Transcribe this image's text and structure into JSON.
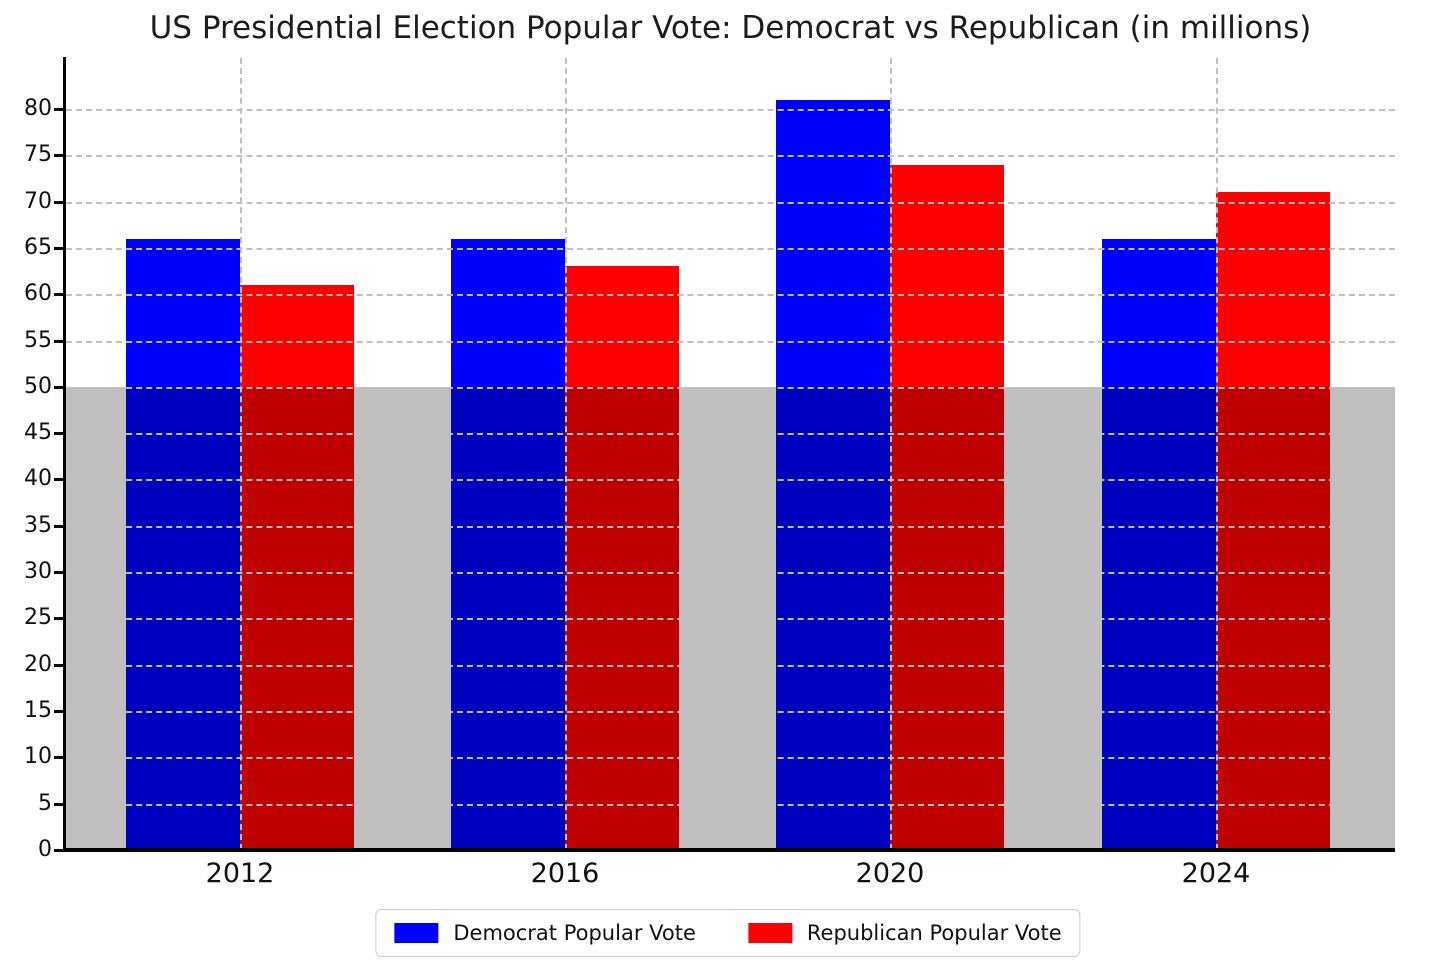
{
  "title": "US Presidential Election Popular Vote: Democrat vs Republican (in millions)",
  "chart_data": {
    "type": "bar",
    "title": "US Presidential Election Popular Vote: Democrat vs Republican (in millions)",
    "categories": [
      "2012",
      "2016",
      "2020",
      "2024"
    ],
    "series": [
      {
        "name": "Democrat Popular Vote",
        "color": "#0000ff",
        "values": [
          66,
          66,
          81,
          66
        ]
      },
      {
        "name": "Republican Popular Vote",
        "color": "#ff0000",
        "values": [
          61,
          63,
          74,
          71
        ]
      }
    ],
    "xlabel": "",
    "ylabel": "",
    "ylim": [
      0,
      85.5
    ],
    "yticks": [
      0,
      5,
      10,
      15,
      20,
      25,
      30,
      35,
      40,
      45,
      50,
      55,
      60,
      65,
      70,
      75,
      80
    ],
    "grid": "dashed",
    "grid_color": "#c0c0c0",
    "legend_position": "bottom-center",
    "highlight_band": {
      "from": 0,
      "to": 50,
      "color": "rgba(0,0,0,0.25)"
    },
    "group_centers_frac": [
      0.131,
      0.3755,
      0.62,
      0.865
    ],
    "bar_width_frac": 0.0858
  }
}
